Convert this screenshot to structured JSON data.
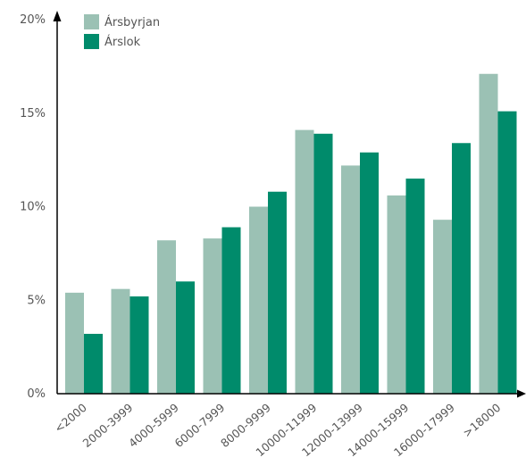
{
  "chart_data": {
    "type": "bar",
    "categories": [
      "<2000",
      "2000-3999",
      "4000-5999",
      "6000-7999",
      "8000-9999",
      "10000-11999",
      "12000-13999",
      "14000-15999",
      "16000-17999",
      ">18000"
    ],
    "series": [
      {
        "name": "Ársbyrjan",
        "color": "#9bc1b4",
        "values": [
          5.4,
          5.6,
          8.2,
          8.3,
          10.0,
          14.1,
          12.2,
          10.6,
          9.3,
          17.1
        ]
      },
      {
        "name": "Árslok",
        "color": "#008b6b",
        "values": [
          3.2,
          5.2,
          6.0,
          8.9,
          10.8,
          13.9,
          12.9,
          11.5,
          13.4,
          15.1
        ]
      }
    ],
    "ylim": [
      0,
      20
    ],
    "yticks": [
      0,
      5,
      10,
      15,
      20
    ],
    "ytick_labels": [
      "0%",
      "5%",
      "10%",
      "15%",
      "20%"
    ],
    "grid": false,
    "legend_position": "top-left"
  }
}
